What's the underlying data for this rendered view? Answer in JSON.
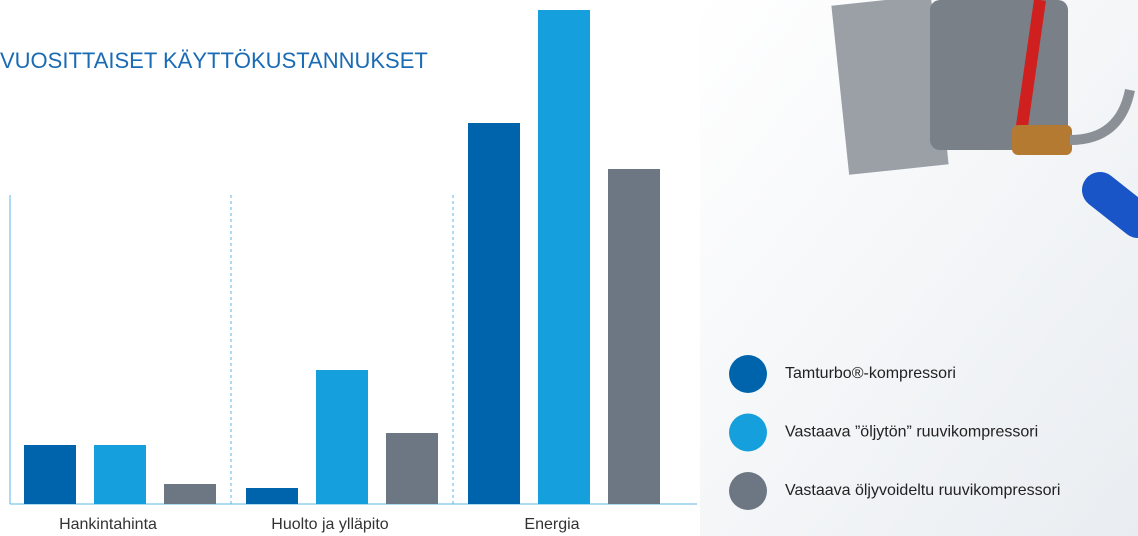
{
  "chart_data": {
    "type": "bar",
    "title": "VUOSITTAISET KÄYTTÖKUSTANNUKSET",
    "categories": [
      "Hankintahinta",
      "Huolto ja ylläpito",
      "Energia"
    ],
    "series": [
      {
        "name": "Tamturbo®-kompressori",
        "color": "#0064ad",
        "values": [
          59,
          16,
          381
        ]
      },
      {
        "name": "Vastaava ”öljytön” ruuvikompressori",
        "color": "#159fdc",
        "values": [
          59,
          134,
          494
        ]
      },
      {
        "name": "Vastaava öljyvoideltu ruuvikompressori",
        "color": "#6c7783",
        "values": [
          20,
          71,
          335
        ]
      }
    ],
    "ylim": [
      0,
      494
    ]
  }
}
